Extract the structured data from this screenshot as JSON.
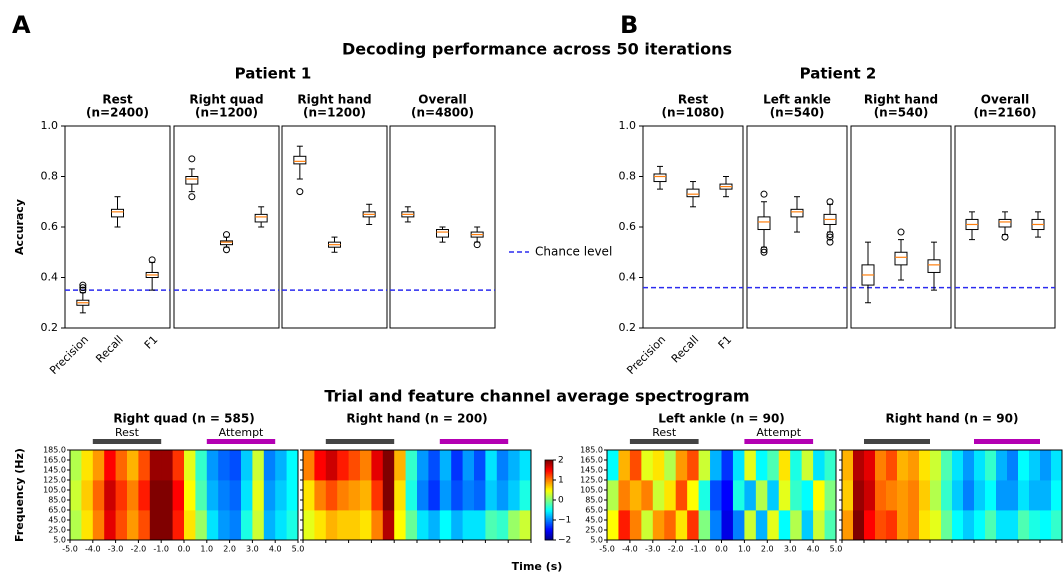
{
  "figure": {
    "panel_labels": [
      "A",
      "B"
    ],
    "title": "Decoding performance across 50 iterations"
  },
  "chart_data": [
    {
      "type": "box",
      "title": "Patient 1",
      "ylabel": "Accuracy",
      "categories": [
        "Precision",
        "Recall",
        "F1"
      ],
      "ylim": [
        0.2,
        1.0
      ],
      "yticks": [
        0.2,
        0.4,
        0.6,
        0.8,
        {
          "value": 1.0,
          "label": "1.0"
        }
      ],
      "chance_level": 0.35,
      "chance_label": "Chance level",
      "chance_color": "#2b2bef",
      "box_color": "#000000",
      "median_color": "#ff7f0e",
      "panels": [
        {
          "title": "Rest",
          "subtitle": "(n=2400)",
          "boxes": [
            {
              "whislo": 0.26,
              "q1": 0.29,
              "med": 0.3,
              "q3": 0.31,
              "whishi": 0.34,
              "fliers": [
                0.35,
                0.36,
                0.37
              ]
            },
            {
              "whislo": 0.6,
              "q1": 0.64,
              "med": 0.66,
              "q3": 0.67,
              "whishi": 0.72,
              "fliers": []
            },
            {
              "whislo": 0.35,
              "q1": 0.4,
              "med": 0.41,
              "q3": 0.42,
              "whishi": 0.46,
              "fliers": [
                0.47
              ]
            }
          ]
        },
        {
          "title": "Right quad",
          "subtitle": "(n=1200)",
          "boxes": [
            {
              "whislo": 0.74,
              "q1": 0.77,
              "med": 0.79,
              "q3": 0.8,
              "whishi": 0.83,
              "fliers": [
                0.72,
                0.87
              ]
            },
            {
              "whislo": 0.52,
              "q1": 0.53,
              "med": 0.54,
              "q3": 0.545,
              "whishi": 0.56,
              "fliers": [
                0.51,
                0.57
              ]
            },
            {
              "whislo": 0.6,
              "q1": 0.62,
              "med": 0.64,
              "q3": 0.65,
              "whishi": 0.68,
              "fliers": []
            }
          ]
        },
        {
          "title": "Right hand",
          "subtitle": "(n=1200)",
          "boxes": [
            {
              "whislo": 0.79,
              "q1": 0.85,
              "med": 0.86,
              "q3": 0.88,
              "whishi": 0.92,
              "fliers": [
                0.74
              ]
            },
            {
              "whislo": 0.5,
              "q1": 0.52,
              "med": 0.53,
              "q3": 0.54,
              "whishi": 0.56,
              "fliers": []
            },
            {
              "whislo": 0.61,
              "q1": 0.64,
              "med": 0.65,
              "q3": 0.66,
              "whishi": 0.69,
              "fliers": []
            }
          ]
        },
        {
          "title": "Overall",
          "subtitle": "(n=4800)",
          "boxes": [
            {
              "whislo": 0.62,
              "q1": 0.64,
              "med": 0.65,
              "q3": 0.66,
              "whishi": 0.68,
              "fliers": []
            },
            {
              "whislo": 0.54,
              "q1": 0.56,
              "med": 0.58,
              "q3": 0.59,
              "whishi": 0.6,
              "fliers": []
            },
            {
              "whislo": 0.54,
              "q1": 0.56,
              "med": 0.57,
              "q3": 0.58,
              "whishi": 0.6,
              "fliers": [
                0.53
              ]
            }
          ]
        }
      ]
    },
    {
      "type": "box",
      "title": "Patient 2",
      "categories": [
        "Precision",
        "Recall",
        "F1"
      ],
      "ylim": [
        0.2,
        1.0
      ],
      "yticks": [
        0.2,
        0.4,
        0.6,
        0.8,
        {
          "value": 1.0,
          "label": "1.0"
        }
      ],
      "chance_level": 0.36,
      "chance_color": "#2b2bef",
      "box_color": "#000000",
      "median_color": "#ff7f0e",
      "panels": [
        {
          "title": "Rest",
          "subtitle": "(n=1080)",
          "boxes": [
            {
              "whislo": 0.75,
              "q1": 0.78,
              "med": 0.8,
              "q3": 0.81,
              "whishi": 0.84,
              "fliers": []
            },
            {
              "whislo": 0.68,
              "q1": 0.72,
              "med": 0.73,
              "q3": 0.75,
              "whishi": 0.78,
              "fliers": []
            },
            {
              "whislo": 0.72,
              "q1": 0.75,
              "med": 0.76,
              "q3": 0.77,
              "whishi": 0.8,
              "fliers": []
            }
          ]
        },
        {
          "title": "Left ankle",
          "subtitle": "(n=540)",
          "boxes": [
            {
              "whislo": 0.52,
              "q1": 0.59,
              "med": 0.62,
              "q3": 0.64,
              "whishi": 0.7,
              "fliers": [
                0.5,
                0.51,
                0.73
              ]
            },
            {
              "whislo": 0.58,
              "q1": 0.64,
              "med": 0.66,
              "q3": 0.67,
              "whishi": 0.72,
              "fliers": []
            },
            {
              "whislo": 0.58,
              "q1": 0.61,
              "med": 0.63,
              "q3": 0.65,
              "whishi": 0.69,
              "fliers": [
                0.54,
                0.56,
                0.57,
                0.7
              ]
            }
          ]
        },
        {
          "title": "Right hand",
          "subtitle": "(n=540)",
          "boxes": [
            {
              "whislo": 0.3,
              "q1": 0.37,
              "med": 0.41,
              "q3": 0.45,
              "whishi": 0.54,
              "fliers": []
            },
            {
              "whislo": 0.39,
              "q1": 0.45,
              "med": 0.48,
              "q3": 0.5,
              "whishi": 0.55,
              "fliers": [
                0.58
              ]
            },
            {
              "whislo": 0.35,
              "q1": 0.42,
              "med": 0.45,
              "q3": 0.47,
              "whishi": 0.54,
              "fliers": []
            }
          ]
        },
        {
          "title": "Overall",
          "subtitle": "(n=2160)",
          "boxes": [
            {
              "whislo": 0.55,
              "q1": 0.59,
              "med": 0.61,
              "q3": 0.63,
              "whishi": 0.66,
              "fliers": []
            },
            {
              "whislo": 0.57,
              "q1": 0.6,
              "med": 0.62,
              "q3": 0.63,
              "whishi": 0.66,
              "fliers": [
                0.56
              ]
            },
            {
              "whislo": 0.56,
              "q1": 0.59,
              "med": 0.61,
              "q3": 0.63,
              "whishi": 0.66,
              "fliers": []
            }
          ]
        }
      ]
    },
    {
      "type": "heatmap",
      "title": "Right quad (n = 585)",
      "xlim": [
        -5,
        5
      ],
      "ylim": [
        5,
        185
      ],
      "z": [
        [
          0.2,
          0.6,
          1.0,
          1.6,
          1.2,
          0.9,
          1.2,
          2.0,
          2.0,
          1.4,
          0.6,
          0.1,
          -0.6,
          -0.9,
          -1.0,
          -0.4,
          0.3,
          -0.8,
          -0.6,
          -0.4
        ],
        [
          0.3,
          0.7,
          1.1,
          1.7,
          1.3,
          1.0,
          1.4,
          2.0,
          2.0,
          1.5,
          0.5,
          -0.2,
          -0.8,
          -1.0,
          -1.1,
          -0.6,
          0.4,
          -0.9,
          -0.7,
          -0.5
        ],
        [
          0.2,
          0.6,
          0.9,
          1.5,
          1.1,
          0.8,
          1.2,
          1.9,
          1.9,
          1.3,
          0.4,
          -0.3,
          -0.9,
          -1.1,
          -1.2,
          -0.7,
          0.3,
          -1.0,
          -0.8,
          -0.5
        ]
      ]
    },
    {
      "type": "heatmap",
      "title": "Right hand (n = 200)",
      "xlim": [
        -5,
        5
      ],
      "ylim": [
        5,
        185
      ],
      "z": [
        [
          0.4,
          0.6,
          0.8,
          0.7,
          0.7,
          0.6,
          1.0,
          1.8,
          0.5,
          -0.1,
          -0.6,
          -0.8,
          -0.5,
          -0.8,
          -0.6,
          -0.6,
          -0.2,
          -0.3,
          0.1,
          0.3
        ],
        [
          0.6,
          1.0,
          1.2,
          1.0,
          0.9,
          0.8,
          1.3,
          2.0,
          0.6,
          -0.4,
          -1.0,
          -1.3,
          -0.9,
          -1.2,
          -1.0,
          -1.1,
          -0.7,
          -0.9,
          -0.7,
          -0.4
        ],
        [
          1.0,
          1.5,
          1.7,
          1.4,
          1.2,
          1.0,
          1.6,
          2.0,
          0.8,
          -0.3,
          -0.9,
          -1.2,
          -0.8,
          -1.3,
          -0.9,
          -1.2,
          -0.6,
          -1.0,
          -0.8,
          -0.6
        ]
      ]
    },
    {
      "type": "heatmap",
      "title": "Left ankle (n = 90)",
      "xlim": [
        -5,
        5
      ],
      "ylim": [
        5,
        185
      ],
      "z": [
        [
          0.5,
          1.4,
          1.0,
          0.3,
          0.9,
          1.1,
          0.6,
          1.3,
          0.0,
          -1.0,
          -1.6,
          -1.0,
          0.3,
          -0.8,
          0.4,
          -0.5,
          0.2,
          -0.7,
          0.3,
          -0.2
        ],
        [
          0.2,
          1.0,
          0.8,
          1.0,
          0.3,
          0.6,
          1.2,
          0.5,
          -0.4,
          -1.2,
          -1.5,
          -0.4,
          -0.8,
          0.2,
          -0.7,
          0.4,
          -0.3,
          -0.5,
          0.5,
          0.0
        ],
        [
          -0.5,
          0.8,
          1.2,
          0.4,
          0.6,
          0.2,
          0.9,
          1.2,
          0.3,
          -0.8,
          -1.3,
          -0.6,
          0.4,
          -0.5,
          -0.2,
          0.6,
          -0.4,
          0.3,
          -0.6,
          -0.3
        ]
      ]
    },
    {
      "type": "heatmap",
      "title": "Right hand (n = 90)",
      "xlim": [
        -5,
        5
      ],
      "ylim": [
        5,
        185
      ],
      "z": [
        [
          0.9,
          2.0,
          1.5,
          1.2,
          1.3,
          0.9,
          1.0,
          0.6,
          0.4,
          -0.1,
          -0.5,
          -0.7,
          -0.5,
          -0.2,
          -0.6,
          -0.6,
          -0.2,
          -0.4,
          -0.5,
          -0.3
        ],
        [
          0.7,
          1.9,
          1.7,
          1.1,
          1.0,
          0.9,
          1.0,
          0.7,
          0.2,
          -0.3,
          -0.7,
          -1.0,
          -0.7,
          -0.5,
          -0.9,
          -0.9,
          -0.6,
          -0.8,
          -0.8,
          -0.5
        ],
        [
          0.8,
          1.8,
          1.6,
          1.0,
          1.2,
          0.8,
          0.9,
          0.6,
          0.3,
          -0.2,
          -0.6,
          -0.9,
          -0.6,
          -0.3,
          -0.8,
          -1.0,
          -0.5,
          -0.7,
          -0.9,
          -0.6
        ]
      ]
    }
  ],
  "spectrogram": {
    "title": "Trial and feature channel average spectrogram",
    "xlabel": "Time (s)",
    "ylabel": "Frequency (Hz)",
    "xticks": [
      {
        "value": -5,
        "label": "-5.0"
      },
      {
        "value": -4,
        "label": "-4.0"
      },
      {
        "value": -3,
        "label": "-3.0"
      },
      {
        "value": -2,
        "label": "-2.0"
      },
      {
        "value": -1,
        "label": "-1.0"
      },
      {
        "value": 0,
        "label": "0.0"
      },
      {
        "value": 1,
        "label": "1.0"
      },
      {
        "value": 2,
        "label": "2.0"
      },
      {
        "value": 3,
        "label": "3.0"
      },
      {
        "value": 4,
        "label": "4.0"
      },
      {
        "value": 5,
        "label": "5.0"
      }
    ],
    "yticks": [
      {
        "value": 5,
        "label": "5.0"
      },
      {
        "value": 25,
        "label": "25.0"
      },
      {
        "value": 45,
        "label": "45.0"
      },
      {
        "value": 65,
        "label": "65.0"
      },
      {
        "value": 85,
        "label": "85.0"
      },
      {
        "value": 105,
        "label": "105.0"
      },
      {
        "value": 125,
        "label": "125.0"
      },
      {
        "value": 145,
        "label": "145.0"
      },
      {
        "value": 165,
        "label": "165.0"
      },
      {
        "value": 185,
        "label": "185.0"
      }
    ],
    "events": [
      {
        "label": "Rest",
        "start": -4,
        "end": -1,
        "color": "#444444"
      },
      {
        "label": "Attempt",
        "start": 1,
        "end": 4,
        "color": "#b300b3"
      }
    ],
    "colorbar": {
      "zlim": [
        -2,
        2
      ],
      "ticks": [
        2,
        1,
        0,
        {
          "value": -1,
          "label": "−1"
        },
        {
          "value": -2,
          "label": "−2"
        }
      ]
    }
  }
}
